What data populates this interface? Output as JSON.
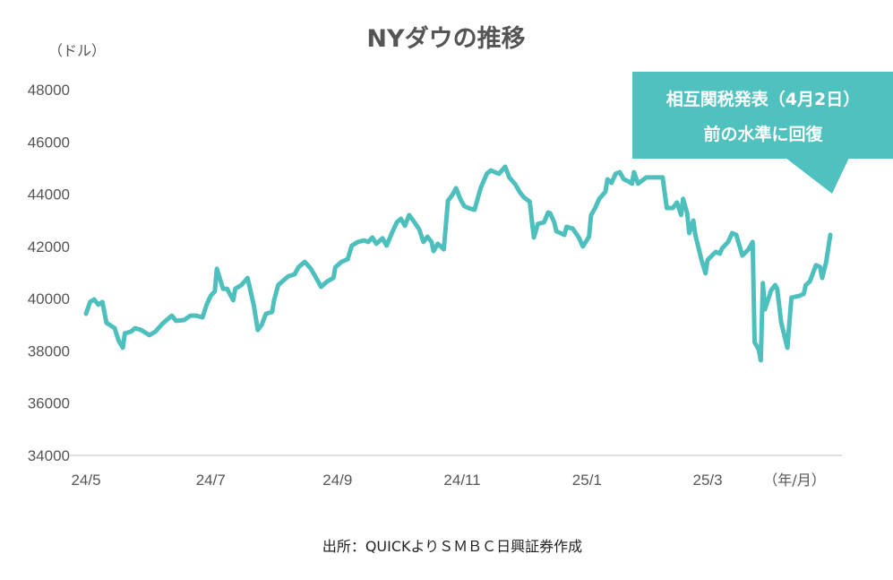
{
  "chart_data": {
    "type": "line",
    "title": "NYダウの推移",
    "ylabel": "（ドル）",
    "xlabel": "（年/月）",
    "ylim": [
      34000,
      48000
    ],
    "yticks": [
      34000,
      36000,
      38000,
      40000,
      42000,
      44000,
      46000,
      48000
    ],
    "xticks": [
      {
        "label": "24/5",
        "date": "2024-05-01"
      },
      {
        "label": "24/7",
        "date": "2024-07-01"
      },
      {
        "label": "24/9",
        "date": "2024-09-01"
      },
      {
        "label": "24/11",
        "date": "2024-11-01"
      },
      {
        "label": "25/1",
        "date": "2025-01-01"
      },
      {
        "label": "25/3",
        "date": "2025-03-01"
      }
    ],
    "xlim": [
      "2024-05-01",
      "2025-05-15"
    ],
    "grid": false,
    "line_color": "#4dc0be",
    "annotation": {
      "lines": [
        "相互関税発表（4月2日）",
        "前の水準に回復"
      ],
      "color": "#4fc1bf"
    },
    "source": "出所：QUICKよりＳＭＢＣ日興証券作成",
    "series": [
      {
        "points": [
          [
            "2024-05-01",
            39420
          ],
          [
            "2024-05-03",
            39870
          ],
          [
            "2024-05-05",
            39970
          ],
          [
            "2024-05-07",
            39770
          ],
          [
            "2024-05-09",
            39870
          ],
          [
            "2024-05-11",
            39080
          ],
          [
            "2024-05-15",
            38870
          ],
          [
            "2024-05-17",
            38390
          ],
          [
            "2024-05-19",
            38120
          ],
          [
            "2024-05-20",
            38670
          ],
          [
            "2024-05-23",
            38740
          ],
          [
            "2024-05-25",
            38870
          ],
          [
            "2024-05-28",
            38800
          ],
          [
            "2024-06-01",
            38600
          ],
          [
            "2024-06-04",
            38740
          ],
          [
            "2024-06-07",
            39010
          ],
          [
            "2024-06-09",
            39150
          ],
          [
            "2024-06-12",
            39350
          ],
          [
            "2024-06-14",
            39150
          ],
          [
            "2024-06-18",
            39180
          ],
          [
            "2024-06-21",
            39350
          ],
          [
            "2024-06-24",
            39350
          ],
          [
            "2024-06-27",
            39280
          ],
          [
            "2024-06-29",
            39770
          ],
          [
            "2024-07-01",
            40110
          ],
          [
            "2024-07-03",
            40280
          ],
          [
            "2024-07-04",
            41140
          ],
          [
            "2024-07-07",
            40380
          ],
          [
            "2024-07-09",
            40380
          ],
          [
            "2024-07-12",
            39940
          ],
          [
            "2024-07-13",
            40380
          ],
          [
            "2024-07-16",
            40520
          ],
          [
            "2024-07-19",
            40790
          ],
          [
            "2024-07-22",
            39770
          ],
          [
            "2024-07-24",
            38800
          ],
          [
            "2024-07-26",
            39010
          ],
          [
            "2024-07-28",
            39420
          ],
          [
            "2024-07-31",
            39490
          ],
          [
            "2024-08-01",
            39940
          ],
          [
            "2024-08-03",
            40520
          ],
          [
            "2024-08-06",
            40730
          ],
          [
            "2024-08-08",
            40860
          ],
          [
            "2024-08-11",
            40930
          ],
          [
            "2024-08-13",
            41210
          ],
          [
            "2024-08-16",
            41410
          ],
          [
            "2024-08-19",
            41140
          ],
          [
            "2024-08-22",
            40730
          ],
          [
            "2024-08-24",
            40450
          ],
          [
            "2024-08-27",
            40660
          ],
          [
            "2024-08-30",
            40790
          ],
          [
            "2024-08-31",
            41210
          ],
          [
            "2024-09-03",
            41410
          ],
          [
            "2024-09-06",
            41510
          ],
          [
            "2024-09-08",
            42030
          ],
          [
            "2024-09-11",
            42170
          ],
          [
            "2024-09-14",
            42230
          ],
          [
            "2024-09-16",
            42170
          ],
          [
            "2024-09-18",
            42340
          ],
          [
            "2024-09-20",
            42100
          ],
          [
            "2024-09-23",
            42310
          ],
          [
            "2024-09-25",
            42030
          ],
          [
            "2024-09-28",
            42580
          ],
          [
            "2024-09-30",
            42920
          ],
          [
            "2024-10-02",
            43060
          ],
          [
            "2024-10-04",
            42790
          ],
          [
            "2024-10-06",
            43200
          ],
          [
            "2024-10-08",
            42990
          ],
          [
            "2024-10-11",
            42650
          ],
          [
            "2024-10-13",
            42170
          ],
          [
            "2024-10-15",
            42370
          ],
          [
            "2024-10-17",
            42170
          ],
          [
            "2024-10-18",
            41820
          ],
          [
            "2024-10-20",
            42100
          ],
          [
            "2024-10-23",
            41890
          ],
          [
            "2024-10-25",
            43750
          ],
          [
            "2024-10-27",
            43950
          ],
          [
            "2024-10-29",
            44230
          ],
          [
            "2024-10-31",
            43820
          ],
          [
            "2024-11-02",
            43540
          ],
          [
            "2024-11-04",
            43470
          ],
          [
            "2024-11-07",
            43400
          ],
          [
            "2024-11-10",
            44230
          ],
          [
            "2024-11-13",
            44780
          ],
          [
            "2024-11-15",
            44910
          ],
          [
            "2024-11-17",
            44840
          ],
          [
            "2024-11-19",
            44780
          ],
          [
            "2024-11-22",
            45050
          ],
          [
            "2024-11-24",
            44640
          ],
          [
            "2024-11-27",
            44370
          ],
          [
            "2024-11-29",
            44090
          ],
          [
            "2024-12-01",
            43890
          ],
          [
            "2024-12-04",
            43710
          ],
          [
            "2024-12-06",
            42340
          ],
          [
            "2024-12-08",
            42860
          ],
          [
            "2024-12-11",
            42920
          ],
          [
            "2024-12-13",
            43300
          ],
          [
            "2024-12-14",
            43270
          ],
          [
            "2024-12-16",
            42920
          ],
          [
            "2024-12-17",
            42580
          ],
          [
            "2024-12-21",
            42440
          ],
          [
            "2024-12-22",
            42750
          ],
          [
            "2024-12-25",
            42680
          ],
          [
            "2024-12-28",
            42340
          ],
          [
            "2024-12-30",
            42000
          ],
          [
            "2025-01-02",
            42370
          ],
          [
            "2025-01-03",
            43200
          ],
          [
            "2025-01-05",
            43470
          ],
          [
            "2025-01-07",
            43820
          ],
          [
            "2025-01-10",
            44090
          ],
          [
            "2025-01-11",
            44570
          ],
          [
            "2025-01-13",
            44430
          ],
          [
            "2025-01-15",
            44780
          ],
          [
            "2025-01-17",
            44840
          ],
          [
            "2025-01-19",
            44570
          ],
          [
            "2025-01-21",
            44500
          ],
          [
            "2025-01-23",
            44400
          ],
          [
            "2025-01-24",
            44840
          ],
          [
            "2025-01-26",
            44400
          ],
          [
            "2025-01-30",
            44640
          ],
          [
            "2025-02-07",
            44640
          ],
          [
            "2025-02-09",
            43470
          ],
          [
            "2025-02-12",
            43470
          ],
          [
            "2025-02-14",
            43680
          ],
          [
            "2025-02-16",
            43200
          ],
          [
            "2025-02-17",
            43820
          ],
          [
            "2025-02-19",
            43270
          ],
          [
            "2025-02-20",
            42510
          ],
          [
            "2025-02-22",
            42990
          ],
          [
            "2025-02-23",
            42440
          ],
          [
            "2025-02-26",
            41480
          ],
          [
            "2025-02-28",
            40970
          ],
          [
            "2025-03-01",
            41480
          ],
          [
            "2025-03-04",
            41720
          ],
          [
            "2025-03-05",
            41790
          ],
          [
            "2025-03-07",
            41720
          ],
          [
            "2025-03-08",
            41920
          ],
          [
            "2025-03-11",
            42170
          ],
          [
            "2025-03-13",
            42510
          ],
          [
            "2025-03-15",
            42440
          ],
          [
            "2025-03-18",
            41650
          ],
          [
            "2025-03-21",
            41890
          ],
          [
            "2025-03-23",
            42170
          ],
          [
            "2025-03-24",
            38330
          ],
          [
            "2025-03-26",
            38050
          ],
          [
            "2025-03-27",
            37640
          ],
          [
            "2025-03-28",
            40590
          ],
          [
            "2025-03-29",
            39590
          ],
          [
            "2025-04-01",
            40310
          ],
          [
            "2025-04-03",
            40520
          ],
          [
            "2025-04-04",
            40380
          ],
          [
            "2025-04-06",
            39080
          ],
          [
            "2025-04-09",
            38120
          ],
          [
            "2025-04-11",
            40040
          ],
          [
            "2025-04-15",
            40110
          ],
          [
            "2025-04-17",
            40180
          ],
          [
            "2025-04-18",
            40520
          ],
          [
            "2025-04-20",
            40660
          ],
          [
            "2025-04-23",
            41280
          ],
          [
            "2025-04-25",
            41210
          ],
          [
            "2025-04-26",
            40790
          ],
          [
            "2025-04-28",
            41410
          ],
          [
            "2025-04-30",
            42440
          ]
        ]
      }
    ]
  }
}
